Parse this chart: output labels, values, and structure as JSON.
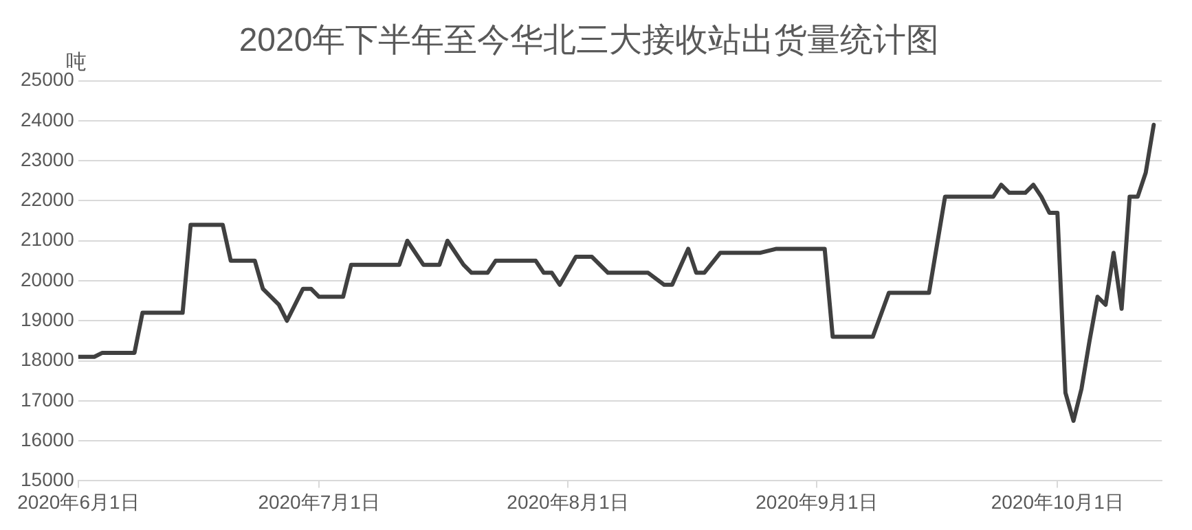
{
  "chart_data": {
    "type": "line",
    "title": "2020年下半年至今华北三大接收站出货量统计图",
    "ylabel": "吨",
    "x": [
      "2020-06-01",
      "2020-06-03",
      "2020-06-04",
      "2020-06-08",
      "2020-06-09",
      "2020-06-14",
      "2020-06-15",
      "2020-06-19",
      "2020-06-20",
      "2020-06-23",
      "2020-06-24",
      "2020-06-26",
      "2020-06-27",
      "2020-06-29",
      "2020-06-30",
      "2020-07-01",
      "2020-07-04",
      "2020-07-05",
      "2020-07-11",
      "2020-07-12",
      "2020-07-14",
      "2020-07-16",
      "2020-07-17",
      "2020-07-19",
      "2020-07-20",
      "2020-07-22",
      "2020-07-23",
      "2020-07-28",
      "2020-07-29",
      "2020-07-30",
      "2020-07-31",
      "2020-08-02",
      "2020-08-04",
      "2020-08-06",
      "2020-08-11",
      "2020-08-13",
      "2020-08-14",
      "2020-08-16",
      "2020-08-17",
      "2020-08-18",
      "2020-08-20",
      "2020-08-25",
      "2020-08-27",
      "2020-09-02",
      "2020-09-03",
      "2020-09-08",
      "2020-09-10",
      "2020-09-15",
      "2020-09-17",
      "2020-09-23",
      "2020-09-24",
      "2020-09-25",
      "2020-09-27",
      "2020-09-28",
      "2020-09-29",
      "2020-09-30",
      "2020-10-01",
      "2020-10-02",
      "2020-10-03",
      "2020-10-04",
      "2020-10-05",
      "2020-10-06",
      "2020-10-07",
      "2020-10-08",
      "2020-10-09",
      "2020-10-10",
      "2020-10-11",
      "2020-10-12",
      "2020-10-13"
    ],
    "series": [
      {
        "color": "#404040",
        "values": [
          18100,
          18100,
          18200,
          18200,
          19200,
          19200,
          21400,
          21400,
          20500,
          20500,
          19800,
          19400,
          19000,
          19800,
          19800,
          19600,
          19600,
          20400,
          20400,
          21000,
          20400,
          20400,
          21000,
          20400,
          20200,
          20200,
          20500,
          20500,
          20200,
          20200,
          19900,
          20600,
          20600,
          20200,
          20200,
          19900,
          19900,
          20800,
          20200,
          20200,
          20700,
          20700,
          20800,
          20800,
          18600,
          18600,
          19700,
          19700,
          22100,
          22100,
          22400,
          22200,
          22200,
          22400,
          22100,
          21700,
          21700,
          17200,
          16500,
          17300,
          18500,
          19600,
          19400,
          20700,
          19300,
          22100,
          22100,
          22700,
          23900
        ]
      }
    ],
    "xlim": [
      "2020-06-01",
      "2020-10-14"
    ],
    "xticks": [
      {
        "value": "2020-06-01",
        "label": "2020年6月1日"
      },
      {
        "value": "2020-07-01",
        "label": "2020年7月1日"
      },
      {
        "value": "2020-08-01",
        "label": "2020年8月1日"
      },
      {
        "value": "2020-09-01",
        "label": "2020年9月1日"
      },
      {
        "value": "2020-10-01",
        "label": "2020年10月1日"
      }
    ],
    "ylim": [
      15000,
      25000
    ],
    "yticks": [
      15000,
      16000,
      17000,
      18000,
      19000,
      20000,
      21000,
      22000,
      23000,
      24000,
      25000
    ],
    "grid": "y",
    "legend": false,
    "marker": "none",
    "line_style": "solid"
  }
}
